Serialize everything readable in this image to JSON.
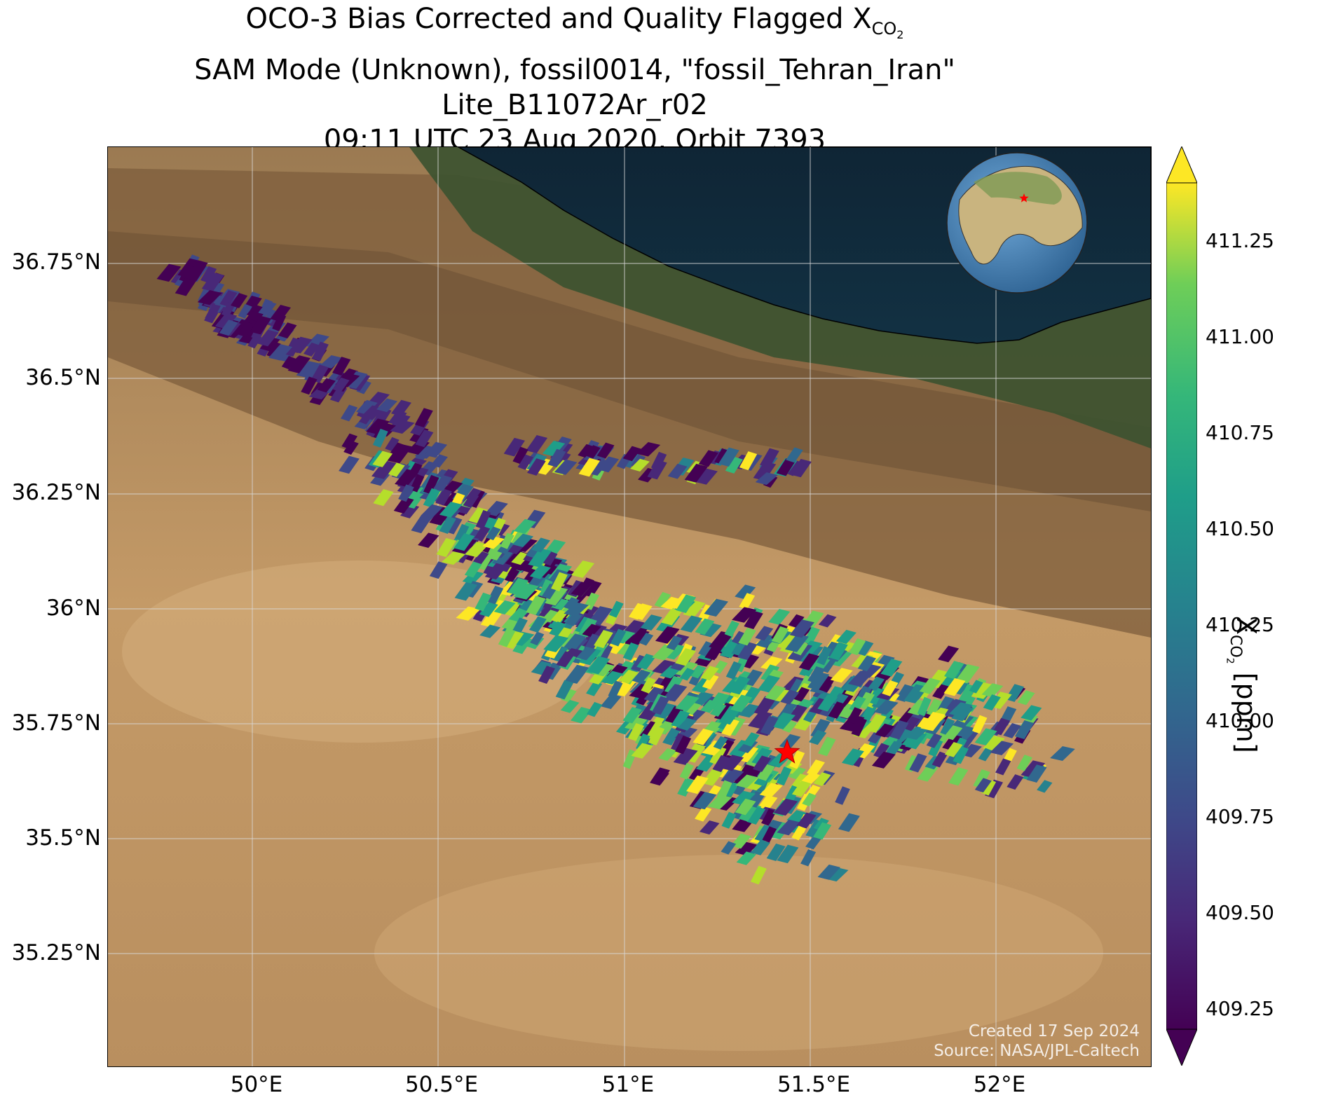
{
  "title": {
    "line1_prefix": "OCO-3 Bias Corrected and Quality Flagged X",
    "line1_sub": "CO",
    "line1_sub2": "2",
    "line2": "SAM Mode (Unknown), fossil0014, \"fossil_Tehran_Iran\"",
    "line3": "Lite_B11072Ar_r02",
    "line4": "09:11 UTC 23 Aug 2020, Orbit 7393"
  },
  "map": {
    "lat_ticks": [
      "36.75°N",
      "36.5°N",
      "36.25°N",
      "36°N",
      "35.75°N",
      "35.5°N",
      "35.25°N"
    ],
    "lon_ticks": [
      "50°E",
      "50.5°E",
      "51°E",
      "51.5°E",
      "52°E"
    ],
    "target_marker": "red-star",
    "colors": {
      "sea": "#10293a",
      "forest": "#3b5230",
      "desert": "#c49a67",
      "mountain": "#8a6a45",
      "grid": "#d9d9d9",
      "marker": "#ff0000"
    }
  },
  "inset_globe": {
    "marker": "red-star"
  },
  "credit": {
    "line1": "Created 17 Sep 2024",
    "line2": "Source: NASA/JPL-Caltech"
  },
  "colorbar": {
    "ticks": [
      "411.25",
      "411.00",
      "410.75",
      "410.50",
      "410.25",
      "410.00",
      "409.75",
      "409.50",
      "409.25"
    ],
    "label_prefix": "X",
    "label_sub": "CO",
    "label_sub2": "2",
    "label_suffix": " [ppm]",
    "min": 409.1,
    "max": 411.4,
    "extend": "both",
    "colormap": "viridis"
  }
}
